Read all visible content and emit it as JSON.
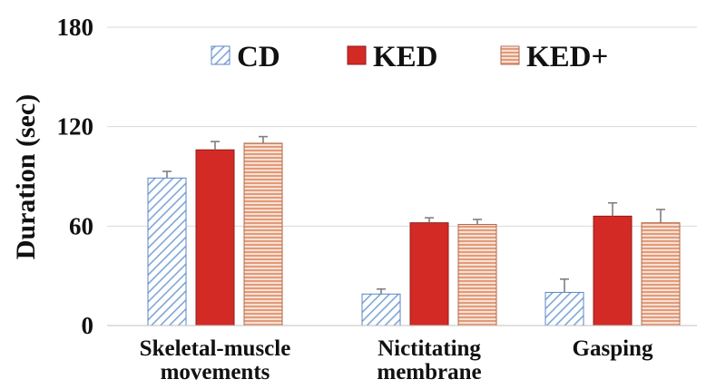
{
  "chart_data": {
    "type": "bar",
    "ylabel": "Duration (sec)",
    "xlabel": "",
    "title": "",
    "ylim": [
      0,
      180
    ],
    "yticks": [
      0,
      60,
      120,
      180
    ],
    "grid": true,
    "legend_position": "top",
    "categories": [
      {
        "lines": [
          "Skeletal-muscle",
          "movements"
        ]
      },
      {
        "lines": [
          "Nictitating",
          "membrane"
        ]
      },
      {
        "lines": [
          "Gasping"
        ]
      }
    ],
    "series": [
      {
        "name": "CD",
        "pattern": "diagonal",
        "color": "#a9c4e6",
        "stroke": "#5b86c4",
        "values": [
          89,
          19,
          20
        ],
        "errors": [
          4,
          3,
          8
        ]
      },
      {
        "name": "KED",
        "pattern": "solid",
        "color": "#d42a26",
        "stroke": "#8e1c1a",
        "values": [
          106,
          62,
          66
        ],
        "errors": [
          5,
          3,
          8
        ]
      },
      {
        "name": "KED+",
        "pattern": "horizontal",
        "color": "#e7a07e",
        "stroke": "#b06a4a",
        "values": [
          110,
          61,
          62
        ],
        "errors": [
          4,
          3,
          8
        ]
      }
    ]
  }
}
